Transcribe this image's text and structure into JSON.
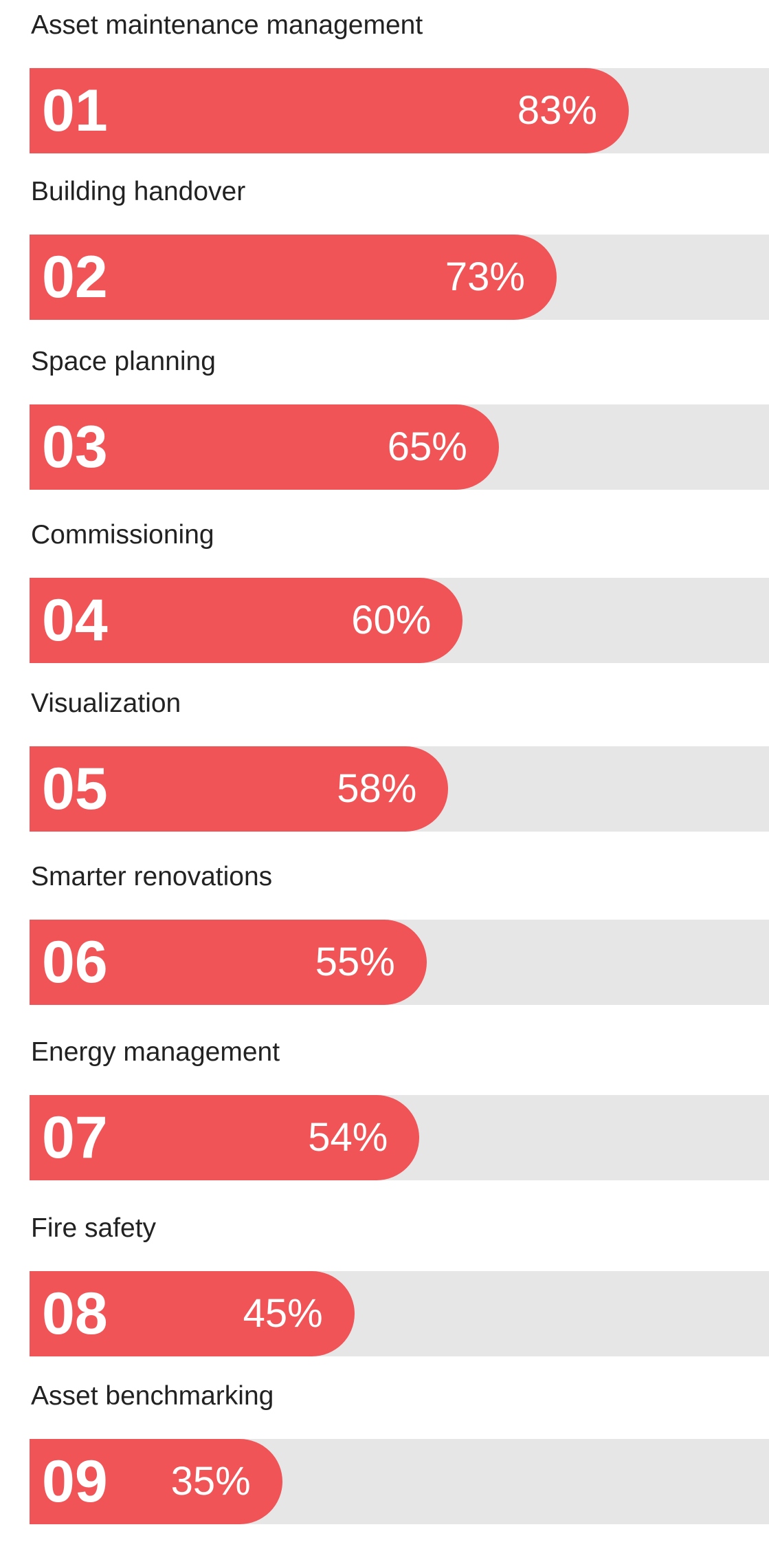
{
  "colors": {
    "bar": "#f05457",
    "track": "#e6e6e6",
    "label": "#222222",
    "bar_text": "#ffffff"
  },
  "chart_data": {
    "type": "bar",
    "orientation": "horizontal",
    "xlim": [
      0,
      100
    ],
    "title": "",
    "xlabel": "",
    "ylabel": "",
    "grid": false,
    "categories": [
      "Asset maintenance management",
      "Building handover",
      "Space planning",
      "Commissioning",
      "Visualization",
      "Smarter renovations",
      "Energy management",
      "Fire safety",
      "Asset benchmarking"
    ],
    "values": [
      83,
      73,
      65,
      60,
      58,
      55,
      54,
      45,
      35
    ],
    "items": [
      {
        "index": "01",
        "label": "Asset maintenance management",
        "value": 83,
        "value_label": "83%"
      },
      {
        "index": "02",
        "label": "Building handover",
        "value": 73,
        "value_label": "73%"
      },
      {
        "index": "03",
        "label": "Space planning",
        "value": 65,
        "value_label": "65%"
      },
      {
        "index": "04",
        "label": "Commissioning",
        "value": 60,
        "value_label": "60%"
      },
      {
        "index": "05",
        "label": "Visualization",
        "value": 58,
        "value_label": "58%"
      },
      {
        "index": "06",
        "label": "Smarter renovations",
        "value": 55,
        "value_label": "55%"
      },
      {
        "index": "07",
        "label": "Energy management",
        "value": 54,
        "value_label": "54%"
      },
      {
        "index": "08",
        "label": "Fire safety",
        "value": 45,
        "value_label": "45%"
      },
      {
        "index": "09",
        "label": "Asset benchmarking",
        "value": 35,
        "value_label": "35%"
      }
    ]
  }
}
